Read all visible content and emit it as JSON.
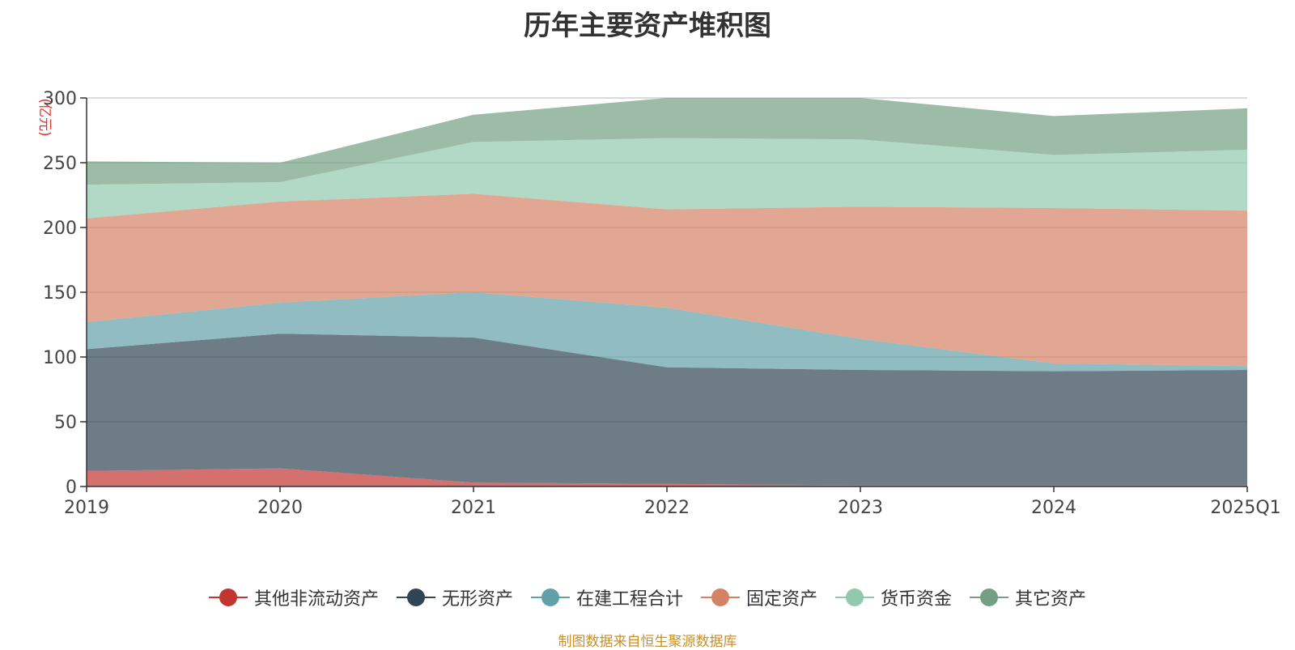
{
  "chart_data": {
    "type": "area",
    "stacked": true,
    "title": "历年主要资产堆积图",
    "unit_label": "(亿元)",
    "categories": [
      "2019",
      "2020",
      "2021",
      "2022",
      "2023",
      "2024",
      "2025Q1"
    ],
    "ylim": [
      0,
      300
    ],
    "yticks": [
      0,
      50,
      100,
      150,
      200,
      250,
      300
    ],
    "grid": true,
    "legend_position": "bottom",
    "series": [
      {
        "name": "其他非流动资产",
        "color": "#c23531",
        "values": [
          12,
          14,
          3,
          2,
          1,
          1,
          1
        ]
      },
      {
        "name": "无形资产",
        "color": "#2f4554",
        "values": [
          94,
          104,
          112,
          90,
          89,
          88,
          89
        ]
      },
      {
        "name": "在建工程合计",
        "color": "#61a0a8",
        "values": [
          21,
          24,
          35,
          46,
          24,
          6,
          3
        ]
      },
      {
        "name": "固定资产",
        "color": "#d48265",
        "values": [
          80,
          78,
          76,
          76,
          102,
          120,
          120
        ]
      },
      {
        "name": "货币资金",
        "color": "#91c7ae",
        "values": [
          26,
          15,
          40,
          55,
          52,
          41,
          47
        ]
      },
      {
        "name": "其它资产",
        "color": "#749f83",
        "values": [
          18,
          15,
          21,
          31,
          32,
          30,
          32
        ]
      }
    ]
  },
  "source": "制图数据来自恒生聚源数据库"
}
